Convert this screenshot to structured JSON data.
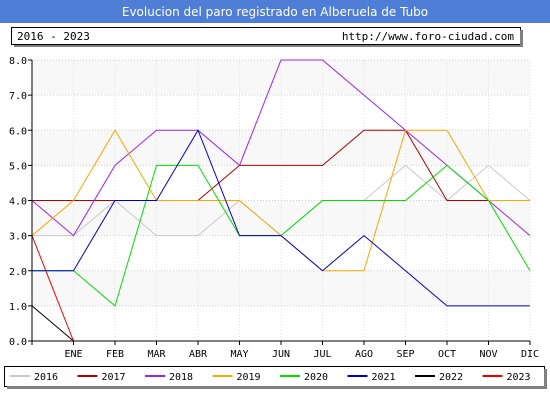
{
  "title": "Evolucion del paro registrado en Alberuela de Tubo",
  "period": "2016 - 2023",
  "source_url": "http://www.foro-ciudad.com",
  "chart_data": {
    "type": "line",
    "categories": [
      "ENE",
      "FEB",
      "MAR",
      "ABR",
      "MAY",
      "JUN",
      "JUL",
      "AGO",
      "SEP",
      "OCT",
      "NOV",
      "DIC"
    ],
    "ylim": [
      0,
      8
    ],
    "y_ticks": [
      "0.0",
      "1.0",
      "2.0",
      "3.0",
      "4.0",
      "5.0",
      "6.0",
      "7.0",
      "8.0"
    ],
    "grid": true,
    "legend_position": "bottom",
    "series": [
      {
        "name": "2016",
        "color": "#c8c8c8",
        "x": [
          0,
          1,
          2,
          3,
          4,
          5,
          6,
          7,
          8,
          9,
          10,
          11,
          12
        ],
        "values": [
          3,
          3,
          4,
          3,
          3,
          4,
          3,
          4,
          4,
          5,
          4,
          5,
          4
        ]
      },
      {
        "name": "2017",
        "color": "#b30000",
        "x": [
          0,
          1,
          2,
          3,
          4,
          5,
          6,
          7,
          8,
          9,
          10,
          11,
          12
        ],
        "values": [
          4,
          4,
          4,
          4,
          4,
          5,
          5,
          5,
          6,
          6,
          4,
          4,
          4
        ]
      },
      {
        "name": "2018",
        "color": "#a020f0",
        "x": [
          0,
          1,
          2,
          3,
          4,
          5,
          6,
          7,
          8,
          9,
          10,
          11,
          12
        ],
        "values": [
          4,
          3,
          5,
          6,
          6,
          5,
          8,
          8,
          7,
          6,
          5,
          4,
          3
        ]
      },
      {
        "name": "2019",
        "color": "#ffa500",
        "x": [
          0,
          1,
          2,
          3,
          4,
          5,
          6,
          7,
          8,
          9,
          10,
          11,
          12
        ],
        "values": [
          3,
          4,
          6,
          4,
          4,
          4,
          3,
          2,
          2,
          6,
          6,
          4,
          4
        ]
      },
      {
        "name": "2020",
        "color": "#00e000",
        "x": [
          0,
          1,
          2,
          3,
          4,
          5,
          6,
          7,
          8,
          9,
          10,
          11,
          12
        ],
        "values": [
          2,
          2,
          1,
          5,
          5,
          3,
          3,
          4,
          4,
          4,
          5,
          4,
          2
        ]
      },
      {
        "name": "2021",
        "color": "#0000cc",
        "x": [
          0,
          1,
          2,
          3,
          4,
          5,
          6,
          7,
          8,
          9,
          10,
          11,
          12
        ],
        "values": [
          2,
          2,
          4,
          4,
          6,
          3,
          3,
          2,
          3,
          2,
          1,
          1,
          1
        ]
      },
      {
        "name": "2022",
        "color": "#000000",
        "x": [
          0,
          1
        ],
        "values": [
          1,
          0
        ]
      },
      {
        "name": "2023",
        "color": "#ee0000",
        "x": [
          0,
          1
        ],
        "values": [
          3,
          0
        ]
      }
    ]
  }
}
